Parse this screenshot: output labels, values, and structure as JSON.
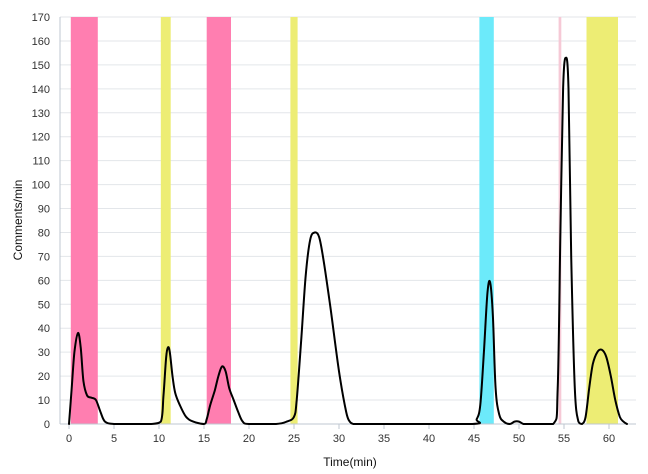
{
  "chart_data": {
    "type": "line",
    "title": "",
    "xlabel": "Time(min)",
    "ylabel": "Comments/min",
    "xlim": [
      -1,
      63
    ],
    "ylim": [
      0,
      170
    ],
    "x_ticks": [
      0,
      5,
      10,
      15,
      20,
      25,
      30,
      35,
      40,
      45,
      50,
      55,
      60
    ],
    "y_ticks": [
      0,
      10,
      20,
      30,
      40,
      50,
      60,
      70,
      80,
      90,
      100,
      110,
      120,
      130,
      140,
      150,
      160,
      170
    ],
    "grid": true,
    "legend": "none",
    "line_color": "#000000",
    "series": [
      {
        "x": [
          0,
          0.3,
          0.6,
          1.0,
          1.3,
          1.6,
          2.0,
          2.5,
          3.0,
          3.5,
          4.0,
          5.0,
          7.0,
          9.0,
          10.2,
          10.5,
          10.8,
          11.0,
          11.2,
          11.5,
          11.8,
          12.3,
          13.0,
          13.8,
          15.0,
          15.3,
          15.7,
          16.2,
          16.6,
          17.0,
          17.4,
          17.8,
          18.3,
          18.8,
          19.3,
          20.0,
          23.0,
          24.2,
          25.0,
          25.3,
          25.8,
          26.3,
          26.8,
          27.3,
          27.8,
          28.3,
          29.0,
          30.0,
          30.8,
          31.2,
          31.6,
          32.0,
          35.0,
          44.8,
          45.3,
          45.7,
          46.1,
          46.5,
          46.8,
          47.1,
          47.4,
          47.8,
          48.3,
          49.0,
          49.5,
          50.0,
          50.5,
          51.0,
          53.8,
          54.3,
          54.6,
          54.9,
          55.2,
          55.5,
          55.8,
          56.2,
          56.6,
          57.0,
          57.4,
          57.8,
          58.2,
          58.7,
          59.2,
          59.7,
          60.2,
          60.7,
          61.2,
          61.6,
          62.0
        ],
        "y": [
          0,
          15,
          30,
          38,
          32,
          18,
          12,
          11,
          10,
          5,
          1,
          0,
          0,
          0,
          1,
          12,
          28,
          32,
          30,
          20,
          13,
          8,
          3,
          1,
          0,
          2,
          8,
          14,
          20,
          24,
          22,
          15,
          10,
          5,
          1,
          0,
          0,
          1,
          3,
          10,
          35,
          62,
          77,
          80,
          78,
          68,
          50,
          22,
          5,
          1,
          0,
          0,
          0,
          0,
          2,
          8,
          30,
          55,
          59,
          45,
          15,
          4,
          1,
          0,
          1,
          1,
          0,
          0,
          0,
          15,
          80,
          140,
          153,
          140,
          70,
          15,
          1,
          0,
          3,
          15,
          25,
          30,
          31,
          28,
          20,
          10,
          3,
          1,
          0
        ]
      }
    ],
    "bands": [
      {
        "x_start": 0.2,
        "x_end": 3.2,
        "color": "#ff7eb0"
      },
      {
        "x_start": 10.2,
        "x_end": 11.3,
        "color": "#eded74"
      },
      {
        "x_start": 15.3,
        "x_end": 18.0,
        "color": "#ff7eb0"
      },
      {
        "x_start": 24.6,
        "x_end": 25.4,
        "color": "#eded74"
      },
      {
        "x_start": 45.6,
        "x_end": 47.2,
        "color": "#6ceafa"
      },
      {
        "x_start": 54.4,
        "x_end": 54.7,
        "color": "#f6c9d6"
      },
      {
        "x_start": 57.5,
        "x_end": 61.0,
        "color": "#eded74"
      }
    ]
  }
}
